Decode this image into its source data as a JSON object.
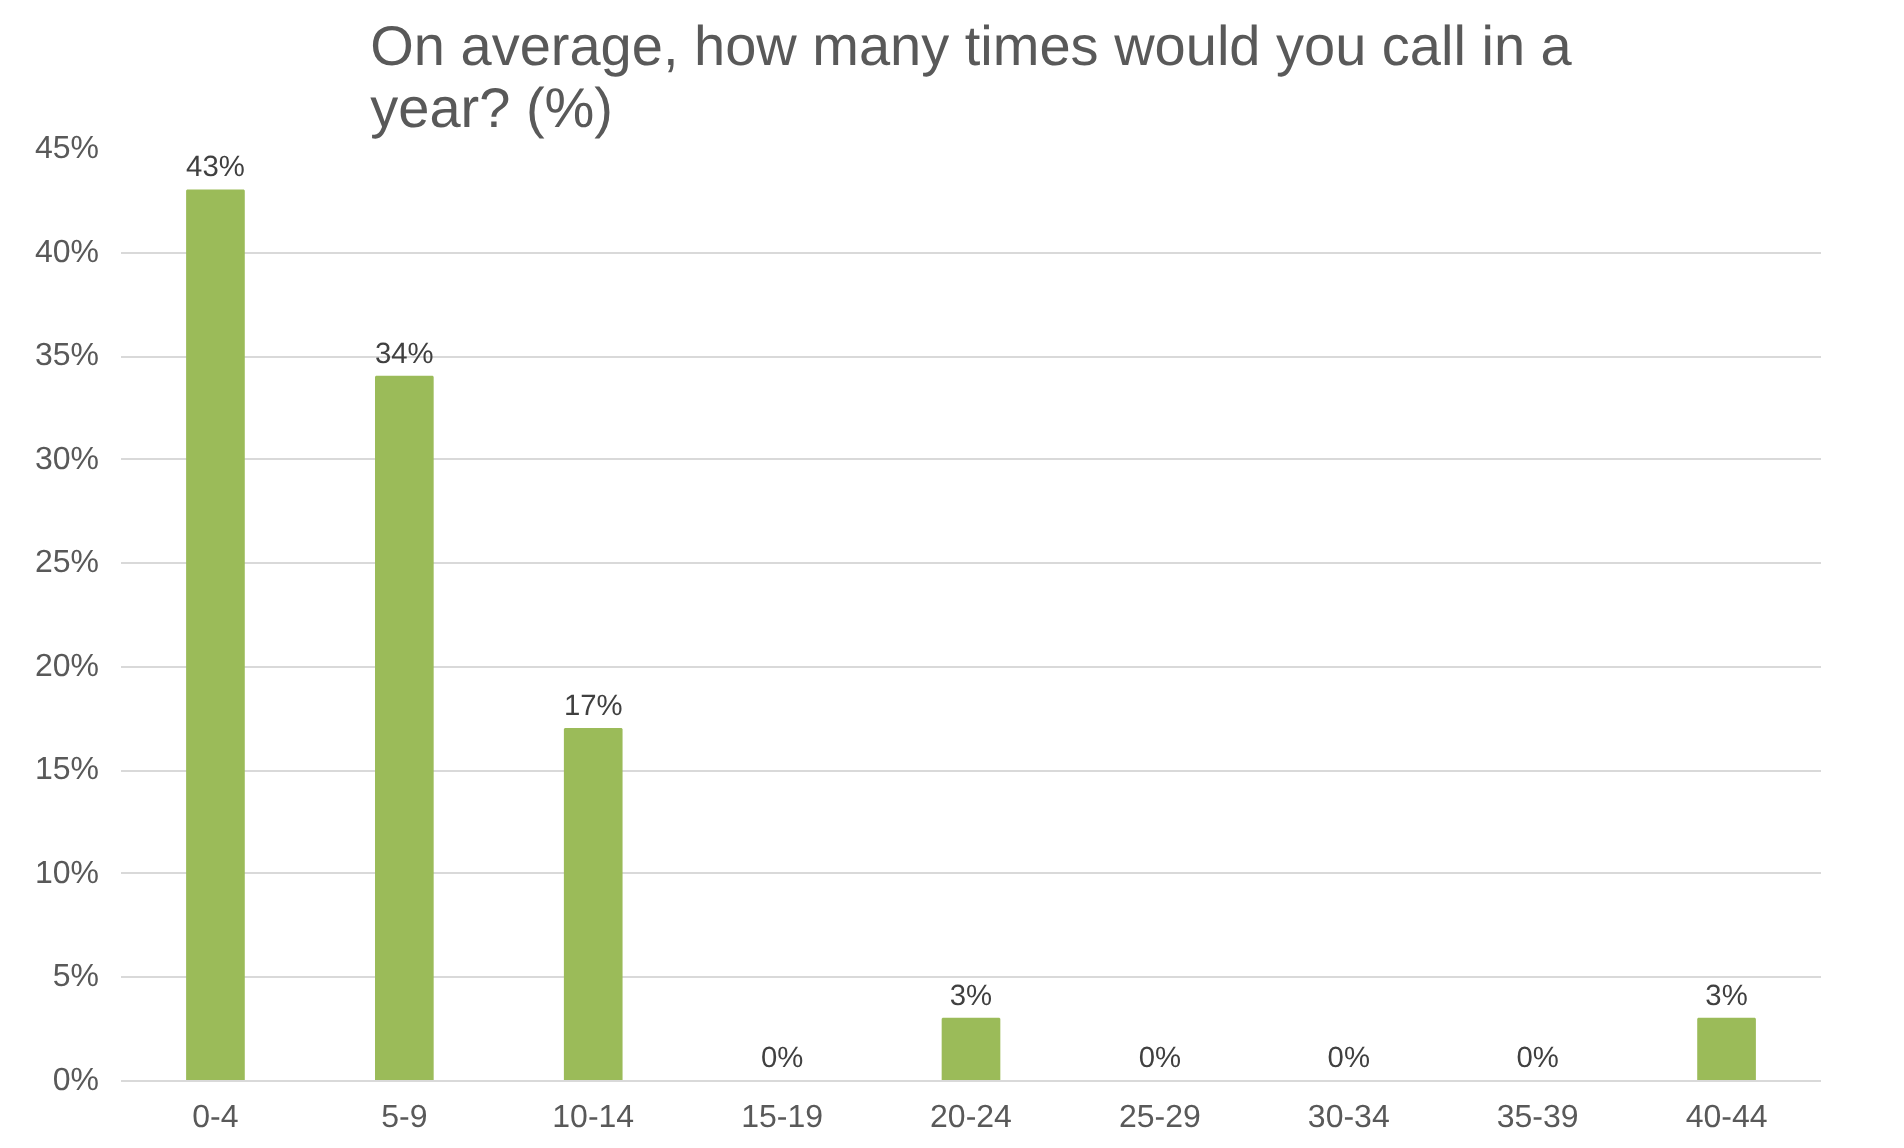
{
  "chart_data": {
    "type": "bar",
    "title": "On average, how many times would you call in a year? (%)",
    "categories": [
      "0-4",
      "5-9",
      "10-14",
      "15-19",
      "20-24",
      "25-29",
      "30-34",
      "35-39",
      "40-44"
    ],
    "values": [
      43,
      34,
      17,
      0,
      3,
      0,
      0,
      0,
      3
    ],
    "value_labels": [
      "43%",
      "34%",
      "17%",
      "0%",
      "3%",
      "0%",
      "0%",
      "0%",
      "3%"
    ],
    "color": "#9bbb59",
    "ylim": [
      0,
      45
    ],
    "yticks": [
      {
        "value": 0,
        "label": "0%"
      },
      {
        "value": 5,
        "label": "5%"
      },
      {
        "value": 10,
        "label": "10%"
      },
      {
        "value": 15,
        "label": "15%"
      },
      {
        "value": 20,
        "label": "20%"
      },
      {
        "value": 25,
        "label": "25%"
      },
      {
        "value": 30,
        "label": "30%"
      },
      {
        "value": 35,
        "label": "35%"
      },
      {
        "value": 40,
        "label": "40%"
      },
      {
        "value": 45,
        "label": "45%"
      }
    ],
    "grid": "y"
  }
}
